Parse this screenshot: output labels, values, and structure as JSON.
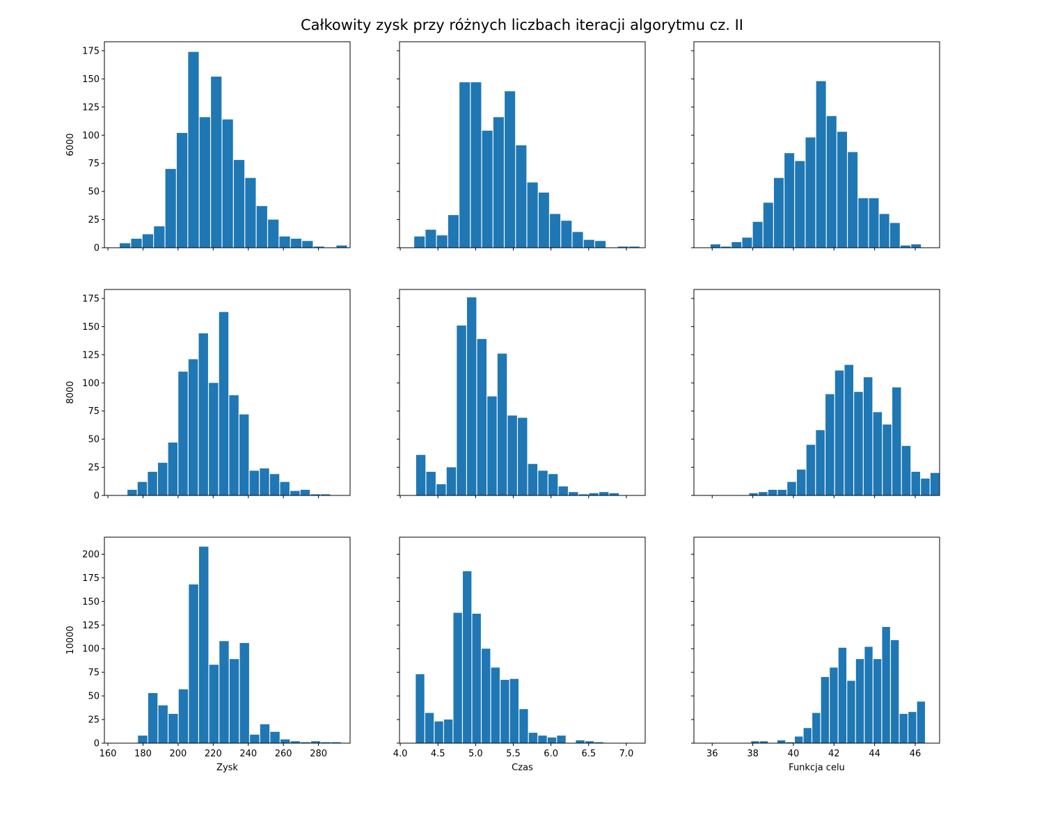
{
  "figure": {
    "title": "Całkowity zysk przy różnych liczbach iteracji algorytmu cz. II"
  },
  "chart_data": [
    {
      "type": "bar",
      "row": 0,
      "col": 0,
      "xlabel": "",
      "ylabel": "6000",
      "xlim": [
        158,
        298
      ],
      "ylim": [
        0,
        183
      ],
      "xticks": [
        160,
        180,
        200,
        220,
        240,
        260,
        280
      ],
      "show_xtick_labels": false,
      "yticks": [
        0,
        25,
        50,
        75,
        100,
        125,
        150,
        175
      ],
      "show_ytick_labels": true,
      "bin_width": 6.5,
      "bar_color": "#1f77b4",
      "bins": [
        166.5,
        173.0,
        179.5,
        186.0,
        192.5,
        199.0,
        205.5,
        212.0,
        218.5,
        225.0,
        231.5,
        238.0,
        244.5,
        251.0,
        257.5,
        264.0,
        270.5,
        277.0,
        283.5,
        290.0
      ],
      "values": [
        4,
        8,
        12,
        19,
        70,
        102,
        174,
        116,
        152,
        114,
        78,
        62,
        37,
        25,
        10,
        8,
        6,
        1,
        0,
        2
      ]
    },
    {
      "type": "bar",
      "row": 0,
      "col": 1,
      "xlabel": "",
      "ylabel": "",
      "xlim": [
        3.99,
        7.25
      ],
      "ylim": [
        0,
        183
      ],
      "xticks": [
        4.0,
        4.5,
        5.0,
        5.5,
        6.0,
        6.5,
        7.0
      ],
      "show_xtick_labels": false,
      "yticks": [
        0,
        25,
        50,
        75,
        100,
        125,
        150,
        175
      ],
      "show_ytick_labels": false,
      "bin_width": 0.15,
      "bar_color": "#1f77b4",
      "bins": [
        4.18,
        4.33,
        4.48,
        4.63,
        4.78,
        4.93,
        5.08,
        5.23,
        5.38,
        5.53,
        5.68,
        5.83,
        5.98,
        6.13,
        6.28,
        6.43,
        6.58,
        6.73,
        6.88,
        7.03
      ],
      "values": [
        10,
        16,
        11,
        29,
        147,
        147,
        104,
        116,
        139,
        91,
        58,
        49,
        30,
        24,
        14,
        7,
        6,
        0,
        1,
        1
      ]
    },
    {
      "type": "bar",
      "row": 0,
      "col": 2,
      "xlabel": "",
      "ylabel": "",
      "xlim": [
        35.1,
        47.2
      ],
      "ylim": [
        0,
        183
      ],
      "xticks": [
        36,
        38,
        40,
        42,
        44,
        46
      ],
      "show_xtick_labels": false,
      "yticks": [
        0,
        25,
        50,
        75,
        100,
        125,
        150,
        175
      ],
      "show_ytick_labels": false,
      "bin_width": 0.52,
      "bar_color": "#1f77b4",
      "bins": [
        35.9,
        36.42,
        36.94,
        37.46,
        37.98,
        38.5,
        39.02,
        39.54,
        40.06,
        40.58,
        41.1,
        41.62,
        42.14,
        42.66,
        43.18,
        43.7,
        44.22,
        44.74,
        45.26,
        45.78
      ],
      "values": [
        3,
        1,
        5,
        9,
        23,
        40,
        62,
        84,
        77,
        98,
        148,
        117,
        103,
        85,
        44,
        44,
        30,
        22,
        2,
        3
      ]
    },
    {
      "type": "bar",
      "row": 1,
      "col": 0,
      "xlabel": "",
      "ylabel": "8000",
      "xlim": [
        158,
        298
      ],
      "ylim": [
        0,
        183
      ],
      "xticks": [
        160,
        180,
        200,
        220,
        240,
        260,
        280
      ],
      "show_xtick_labels": false,
      "yticks": [
        0,
        25,
        50,
        75,
        100,
        125,
        150,
        175
      ],
      "show_ytick_labels": true,
      "bin_width": 5.8,
      "bar_color": "#1f77b4",
      "bins": [
        170.9,
        176.7,
        182.5,
        188.3,
        194.1,
        199.9,
        205.7,
        211.5,
        217.3,
        223.1,
        228.9,
        234.7,
        240.5,
        246.3,
        252.1,
        257.9,
        263.7,
        269.5,
        275.3,
        281.1
      ],
      "values": [
        5,
        12,
        21,
        29,
        47,
        110,
        121,
        144,
        100,
        163,
        89,
        72,
        22,
        24,
        19,
        12,
        4,
        5,
        1,
        1
      ]
    },
    {
      "type": "bar",
      "row": 1,
      "col": 1,
      "xlabel": "",
      "ylabel": "",
      "xlim": [
        3.99,
        7.25
      ],
      "ylim": [
        0,
        183
      ],
      "xticks": [
        4.0,
        4.5,
        5.0,
        5.5,
        6.0,
        6.5,
        7.0
      ],
      "show_xtick_labels": false,
      "yticks": [
        0,
        25,
        50,
        75,
        100,
        125,
        150,
        175
      ],
      "show_ytick_labels": false,
      "bin_width": 0.135,
      "bar_color": "#1f77b4",
      "bins": [
        4.205,
        4.34,
        4.475,
        4.61,
        4.745,
        4.88,
        5.015,
        5.15,
        5.285,
        5.42,
        5.555,
        5.69,
        5.825,
        5.96,
        6.095,
        6.23,
        6.365,
        6.5,
        6.635,
        6.77
      ],
      "values": [
        36,
        21,
        10,
        25,
        151,
        176,
        139,
        88,
        126,
        71,
        69,
        28,
        22,
        19,
        8,
        3,
        1,
        2,
        3,
        2
      ]
    },
    {
      "type": "bar",
      "row": 1,
      "col": 2,
      "xlabel": "",
      "ylabel": "",
      "xlim": [
        35.1,
        47.2
      ],
      "ylim": [
        0,
        183
      ],
      "xticks": [
        36,
        38,
        40,
        42,
        44,
        46
      ],
      "show_xtick_labels": false,
      "yticks": [
        0,
        25,
        50,
        75,
        100,
        125,
        150,
        175
      ],
      "show_ytick_labels": false,
      "bin_width": 0.47,
      "bar_color": "#1f77b4",
      "bins": [
        37.8,
        38.27,
        38.74,
        39.21,
        39.68,
        40.15,
        40.62,
        41.09,
        41.56,
        42.03,
        42.5,
        42.97,
        43.44,
        43.91,
        44.38,
        44.85,
        45.32,
        45.79,
        46.26,
        46.73
      ],
      "values": [
        2,
        3,
        5,
        5,
        12,
        23,
        45,
        58,
        90,
        111,
        116,
        92,
        105,
        74,
        63,
        96,
        44,
        21,
        15,
        20
      ]
    },
    {
      "type": "bar",
      "row": 2,
      "col": 0,
      "xlabel": "Zysk",
      "ylabel": "10000",
      "xlim": [
        158,
        298
      ],
      "ylim": [
        0,
        218
      ],
      "xticks": [
        160,
        180,
        200,
        220,
        240,
        260,
        280
      ],
      "show_xtick_labels": true,
      "yticks": [
        0,
        25,
        50,
        75,
        100,
        125,
        150,
        175,
        200
      ],
      "show_ytick_labels": true,
      "bin_width": 5.8,
      "bar_color": "#1f77b4",
      "bins": [
        176.9,
        182.7,
        188.5,
        194.3,
        200.1,
        205.9,
        211.7,
        217.5,
        223.3,
        229.1,
        234.9,
        240.7,
        246.5,
        252.3,
        258.1,
        263.9,
        269.7,
        275.5,
        281.3,
        287.1
      ],
      "values": [
        8,
        53,
        40,
        31,
        57,
        168,
        208,
        83,
        108,
        89,
        106,
        9,
        20,
        12,
        4,
        2,
        1,
        2,
        1,
        1
      ]
    },
    {
      "type": "bar",
      "row": 2,
      "col": 1,
      "xlabel": "Czas",
      "ylabel": "",
      "xlim": [
        3.99,
        7.25
      ],
      "ylim": [
        0,
        218
      ],
      "xticks": [
        4.0,
        4.5,
        5.0,
        5.5,
        6.0,
        6.5,
        7.0
      ],
      "show_xtick_labels": true,
      "yticks": [
        0,
        25,
        50,
        75,
        100,
        125,
        150,
        175,
        200
      ],
      "show_ytick_labels": false,
      "bin_width": 0.125,
      "bar_color": "#1f77b4",
      "bins": [
        4.2,
        4.325,
        4.45,
        4.575,
        4.7,
        4.825,
        4.95,
        5.075,
        5.2,
        5.325,
        5.45,
        5.575,
        5.7,
        5.825,
        5.95,
        6.075,
        6.2,
        6.325,
        6.45,
        6.575
      ],
      "values": [
        73,
        32,
        23,
        25,
        138,
        182,
        137,
        100,
        80,
        67,
        68,
        36,
        11,
        8,
        6,
        8,
        0,
        3,
        2,
        1
      ]
    },
    {
      "type": "bar",
      "row": 2,
      "col": 2,
      "xlabel": "Funkcja celu",
      "ylabel": "",
      "xlim": [
        35.1,
        47.2
      ],
      "ylim": [
        0,
        218
      ],
      "xticks": [
        36,
        38,
        40,
        42,
        44,
        46
      ],
      "show_xtick_labels": true,
      "yticks": [
        0,
        25,
        50,
        75,
        100,
        125,
        150,
        175,
        200
      ],
      "show_ytick_labels": false,
      "bin_width": 0.43,
      "bar_color": "#1f77b4",
      "bins": [
        37.9,
        38.33,
        38.76,
        39.19,
        39.62,
        40.05,
        40.48,
        40.91,
        41.34,
        41.77,
        42.2,
        42.63,
        43.06,
        43.49,
        43.92,
        44.35,
        44.78,
        45.21,
        45.64,
        46.07,
        46.5
      ],
      "values": [
        2,
        2,
        0,
        3,
        1,
        7,
        16,
        32,
        70,
        80,
        101,
        66,
        89,
        102,
        89,
        123,
        109,
        31,
        33,
        44,
        0
      ]
    }
  ]
}
